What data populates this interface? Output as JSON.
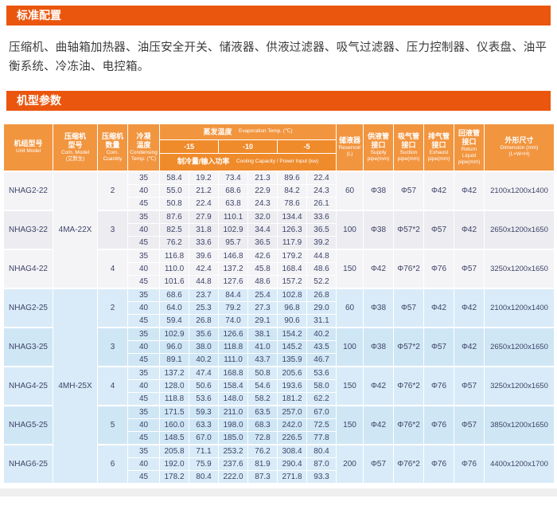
{
  "sections": {
    "standard_config": {
      "title": "标准配置",
      "body": "压缩机、曲轴箱加热器、油压安全开关、储液器、供液过滤器、吸气过滤器、压力控制器、仪表盘、油平衡系统、冷冻油、电控箱。"
    },
    "model_params": {
      "title": "机型参数"
    }
  },
  "colors": {
    "banner_orange": "#ea560d",
    "header_orange": "#f2953f",
    "header_orange_dark": "#ef8b2b",
    "series22_row_a": "#f4f4f7",
    "series22_row_b": "#ececf1",
    "series25_row_a": "#d9ebf8",
    "series25_row_b": "#cfe6f5",
    "body_text": "#3e4467"
  },
  "table": {
    "headers": {
      "unit_model": {
        "cn": "机组型号",
        "en": "Unit Model"
      },
      "com_model": {
        "cn": "压缩机\n型号",
        "en": "Com. Model\n(艾默生)"
      },
      "quantity": {
        "cn": "压缩机\n数量",
        "en": "Com.\nCuantity"
      },
      "condensing": {
        "cn": "冷凝\n温度",
        "en": "Condensing\nTemp. (℃)"
      },
      "evaporation": {
        "cn": "蒸发温度",
        "en": "Evaporation Temp. (℃)"
      },
      "evap_temps": [
        "-15",
        "-10",
        "-5"
      ],
      "capacity": {
        "cn": "制冷量/输入功率",
        "en": "Cooling Capacity / Power Input (kw)"
      },
      "reservoir": {
        "cn": "储液器",
        "en": "Reservoir\n(L)"
      },
      "supply": {
        "cn": "供液管\n接口",
        "en": "Supply\npipe(mm)"
      },
      "suction": {
        "cn": "吸气管\n接口",
        "en": "Suction\npipe(mm)"
      },
      "exhaust": {
        "cn": "排气管\n接口",
        "en": "Exhaust\npipe(mm)"
      },
      "return_liquid": {
        "cn": "回液管\n接口",
        "en": "Return Liquid\npipe(mm)"
      },
      "dimension": {
        "cn": "外形尺寸",
        "en": "Dimension (mm)\n(L×W×H)"
      }
    },
    "com_model_spans": [
      {
        "label": "4MA-22X",
        "start": 0,
        "groups": 3
      },
      {
        "label": "4MH-25X",
        "start": 3,
        "groups": 5
      }
    ],
    "groups": [
      {
        "unit_model": "NHAG2-22",
        "quantity": "2",
        "reservoir": "60",
        "supply": "Φ38",
        "suction": "Φ57",
        "exhaust": "Φ42",
        "return_liquid": "Φ42",
        "dimension": "2100x1200x1400",
        "rows": [
          {
            "temp": "35",
            "values": [
              "58.4",
              "19.2",
              "73.4",
              "21.3",
              "89.6",
              "22.4"
            ]
          },
          {
            "temp": "40",
            "values": [
              "55.0",
              "21.2",
              "68.6",
              "22.9",
              "84.2",
              "24.3"
            ]
          },
          {
            "temp": "45",
            "values": [
              "50.8",
              "22.4",
              "63.8",
              "24.3",
              "78.6",
              "26.1"
            ]
          }
        ]
      },
      {
        "unit_model": "NHAG3-22",
        "quantity": "3",
        "reservoir": "100",
        "supply": "Φ38",
        "suction": "Φ57*2",
        "exhaust": "Φ57",
        "return_liquid": "Φ42",
        "dimension": "2650x1200x1650",
        "rows": [
          {
            "temp": "35",
            "values": [
              "87.6",
              "27.9",
              "110.1",
              "32.0",
              "134.4",
              "33.6"
            ]
          },
          {
            "temp": "40",
            "values": [
              "82.5",
              "31.8",
              "102.9",
              "34.4",
              "126.3",
              "36.5"
            ]
          },
          {
            "temp": "45",
            "values": [
              "76.2",
              "33.6",
              "95.7",
              "36.5",
              "117.9",
              "39.2"
            ]
          }
        ]
      },
      {
        "unit_model": "NHAG4-22",
        "quantity": "4",
        "reservoir": "150",
        "supply": "Φ42",
        "suction": "Φ76*2",
        "exhaust": "Φ76",
        "return_liquid": "Φ57",
        "dimension": "3250x1200x1650",
        "rows": [
          {
            "temp": "35",
            "values": [
              "116.8",
              "39.6",
              "146.8",
              "42.6",
              "179.2",
              "44.8"
            ]
          },
          {
            "temp": "40",
            "values": [
              "110.0",
              "42.4",
              "137.2",
              "45.8",
              "168.4",
              "48.6"
            ]
          },
          {
            "temp": "45",
            "values": [
              "101.6",
              "44.8",
              "127.6",
              "48.6",
              "157.2",
              "52.2"
            ]
          }
        ]
      },
      {
        "unit_model": "NHAG2-25",
        "quantity": "2",
        "reservoir": "60",
        "supply": "Φ38",
        "suction": "Φ57",
        "exhaust": "Φ42",
        "return_liquid": "Φ42",
        "dimension": "2100x1200x1400",
        "rows": [
          {
            "temp": "35",
            "values": [
              "68.6",
              "23.7",
              "84.4",
              "25.4",
              "102.8",
              "26.8"
            ]
          },
          {
            "temp": "40",
            "values": [
              "64.0",
              "25.3",
              "79.2",
              "27.3",
              "96.8",
              "29.0"
            ]
          },
          {
            "temp": "45",
            "values": [
              "59.4",
              "26.8",
              "74.0",
              "29.1",
              "90.6",
              "31.1"
            ]
          }
        ]
      },
      {
        "unit_model": "NHAG3-25",
        "quantity": "3",
        "reservoir": "100",
        "supply": "Φ38",
        "suction": "Φ57*2",
        "exhaust": "Φ57",
        "return_liquid": "Φ42",
        "dimension": "2650x1200x1650",
        "rows": [
          {
            "temp": "35",
            "values": [
              "102.9",
              "35.6",
              "126.6",
              "38.1",
              "154.2",
              "40.2"
            ]
          },
          {
            "temp": "40",
            "values": [
              "96.0",
              "38.0",
              "118.8",
              "41.0",
              "145.2",
              "43.5"
            ]
          },
          {
            "temp": "45",
            "values": [
              "89.1",
              "40.2",
              "111.0",
              "43.7",
              "135.9",
              "46.7"
            ]
          }
        ]
      },
      {
        "unit_model": "NHAG4-25",
        "quantity": "4",
        "reservoir": "150",
        "supply": "Φ42",
        "suction": "Φ76*2",
        "exhaust": "Φ76",
        "return_liquid": "Φ57",
        "dimension": "3250x1200x1650",
        "rows": [
          {
            "temp": "35",
            "values": [
              "137.2",
              "47.4",
              "168.8",
              "50.8",
              "205.6",
              "53.6"
            ]
          },
          {
            "temp": "40",
            "values": [
              "128.0",
              "50.6",
              "158.4",
              "54.6",
              "193.6",
              "58.0"
            ]
          },
          {
            "temp": "45",
            "values": [
              "118.8",
              "53.6",
              "148.0",
              "58.2",
              "181.2",
              "62.2"
            ]
          }
        ]
      },
      {
        "unit_model": "NHAG5-25",
        "quantity": "5",
        "reservoir": "150",
        "supply": "Φ42",
        "suction": "Φ76*2",
        "exhaust": "Φ76",
        "return_liquid": "Φ57",
        "dimension": "3850x1200x1650",
        "rows": [
          {
            "temp": "35",
            "values": [
              "171.5",
              "59.3",
              "211.0",
              "63.5",
              "257.0",
              "67.0"
            ]
          },
          {
            "temp": "40",
            "values": [
              "160.0",
              "63.3",
              "198.0",
              "68.3",
              "242.0",
              "72.5"
            ]
          },
          {
            "temp": "45",
            "values": [
              "148.5",
              "67.0",
              "185.0",
              "72.8",
              "226.5",
              "77.8"
            ]
          }
        ]
      },
      {
        "unit_model": "NHAG6-25",
        "quantity": "6",
        "reservoir": "200",
        "supply": "Φ57",
        "suction": "Φ76*2",
        "exhaust": "Φ76",
        "return_liquid": "Φ76",
        "dimension": "4400x1200x1700",
        "rows": [
          {
            "temp": "35",
            "values": [
              "205.8",
              "71.1",
              "253.2",
              "76.2",
              "308.4",
              "80.4"
            ]
          },
          {
            "temp": "40",
            "values": [
              "192.0",
              "75.9",
              "237.6",
              "81.9",
              "290.4",
              "87.0"
            ]
          },
          {
            "temp": "45",
            "values": [
              "178.2",
              "80.4",
              "222.0",
              "87.3",
              "271.8",
              "93.3"
            ]
          }
        ]
      }
    ]
  }
}
